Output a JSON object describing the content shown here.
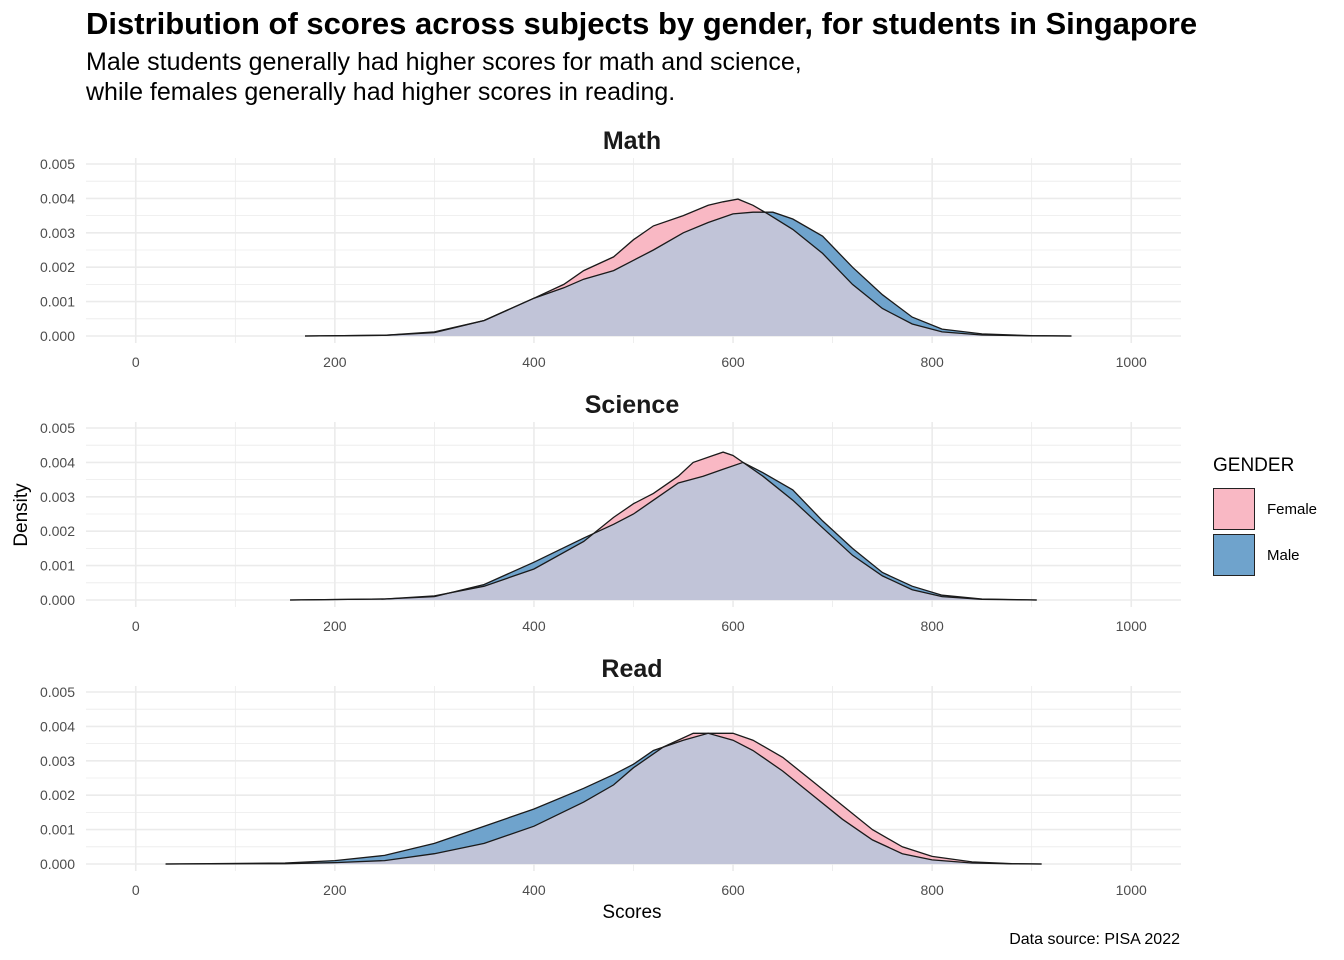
{
  "title": "Distribution of scores across subjects by gender, for students in Singapore",
  "subtitle_line1": "Male students generally had higher scores for math and science,",
  "subtitle_line2": "while females generally had higher scores in reading.",
  "caption": "Data source: PISA 2022",
  "legend": {
    "title": "GENDER",
    "items": [
      {
        "label": "Female",
        "color": "#F9B8C4"
      },
      {
        "label": "Male",
        "color": "#6FA3CC"
      }
    ]
  },
  "colors": {
    "female_fill": "#F9B8C4",
    "male_fill": "#6FA3CC",
    "overlap_fill": "#C1C4D8",
    "grid": "#EBEBEB",
    "outline": "#1a1a1a"
  },
  "chart_data": {
    "type": "area",
    "xlabel": "Scores",
    "ylabel": "Density",
    "xlim": [
      -50,
      1050
    ],
    "ylim": [
      0,
      0.005
    ],
    "x_ticks": [
      0,
      200,
      400,
      600,
      800,
      1000
    ],
    "y_ticks": [
      0,
      0.001,
      0.002,
      0.003,
      0.004,
      0.005
    ],
    "y_tick_labels": [
      "0.000",
      "0.001",
      "0.002",
      "0.003",
      "0.004",
      "0.005"
    ],
    "legend_position": "right",
    "panels": [
      {
        "name": "Math",
        "series": [
          {
            "name": "Female",
            "points": [
              [
                170,
                0
              ],
              [
                250,
                2e-05
              ],
              [
                300,
                0.00012
              ],
              [
                350,
                0.00045
              ],
              [
                400,
                0.0011
              ],
              [
                430,
                0.0015
              ],
              [
                450,
                0.0019
              ],
              [
                480,
                0.0023
              ],
              [
                500,
                0.0028
              ],
              [
                520,
                0.0032
              ],
              [
                550,
                0.0035
              ],
              [
                575,
                0.0038
              ],
              [
                590,
                0.0039
              ],
              [
                605,
                0.00398
              ],
              [
                620,
                0.0038
              ],
              [
                635,
                0.00355
              ],
              [
                660,
                0.0031
              ],
              [
                690,
                0.0024
              ],
              [
                720,
                0.0015
              ],
              [
                750,
                0.0008
              ],
              [
                780,
                0.00035
              ],
              [
                810,
                0.00012
              ],
              [
                850,
                3e-05
              ],
              [
                900,
                5e-06
              ],
              [
                940,
                0
              ]
            ]
          },
          {
            "name": "Male",
            "points": [
              [
                170,
                0
              ],
              [
                250,
                2e-05
              ],
              [
                300,
                0.0001
              ],
              [
                350,
                0.00045
              ],
              [
                400,
                0.0011
              ],
              [
                430,
                0.0014
              ],
              [
                450,
                0.00165
              ],
              [
                480,
                0.0019
              ],
              [
                500,
                0.0022
              ],
              [
                520,
                0.0025
              ],
              [
                550,
                0.003
              ],
              [
                575,
                0.0033
              ],
              [
                600,
                0.00355
              ],
              [
                620,
                0.0036
              ],
              [
                640,
                0.0036
              ],
              [
                660,
                0.0034
              ],
              [
                690,
                0.0029
              ],
              [
                720,
                0.002
              ],
              [
                750,
                0.0012
              ],
              [
                780,
                0.00055
              ],
              [
                810,
                0.0002
              ],
              [
                850,
                6e-05
              ],
              [
                900,
                1e-05
              ],
              [
                940,
                0
              ]
            ]
          }
        ]
      },
      {
        "name": "Science",
        "series": [
          {
            "name": "Female",
            "points": [
              [
                155,
                0
              ],
              [
                250,
                3e-05
              ],
              [
                300,
                0.00012
              ],
              [
                350,
                0.0004
              ],
              [
                400,
                0.0009
              ],
              [
                450,
                0.0017
              ],
              [
                480,
                0.0024
              ],
              [
                500,
                0.0028
              ],
              [
                520,
                0.0031
              ],
              [
                545,
                0.0036
              ],
              [
                560,
                0.004
              ],
              [
                580,
                0.0042
              ],
              [
                590,
                0.0043
              ],
              [
                600,
                0.0042
              ],
              [
                610,
                0.004
              ],
              [
                630,
                0.0036
              ],
              [
                660,
                0.0029
              ],
              [
                690,
                0.0021
              ],
              [
                720,
                0.0013
              ],
              [
                750,
                0.0007
              ],
              [
                780,
                0.0003
              ],
              [
                810,
                0.0001
              ],
              [
                850,
                2e-05
              ],
              [
                905,
                0
              ]
            ]
          },
          {
            "name": "Male",
            "points": [
              [
                155,
                0
              ],
              [
                250,
                3e-05
              ],
              [
                300,
                0.0001
              ],
              [
                350,
                0.00045
              ],
              [
                400,
                0.0011
              ],
              [
                450,
                0.0018
              ],
              [
                480,
                0.0022
              ],
              [
                500,
                0.0025
              ],
              [
                520,
                0.0029
              ],
              [
                545,
                0.0034
              ],
              [
                570,
                0.0036
              ],
              [
                590,
                0.0038
              ],
              [
                610,
                0.004
              ],
              [
                630,
                0.0037
              ],
              [
                660,
                0.0032
              ],
              [
                690,
                0.0023
              ],
              [
                720,
                0.0015
              ],
              [
                750,
                0.0008
              ],
              [
                780,
                0.0004
              ],
              [
                810,
                0.00014
              ],
              [
                850,
                3e-05
              ],
              [
                905,
                0
              ]
            ]
          }
        ]
      },
      {
        "name": "Read",
        "series": [
          {
            "name": "Female",
            "points": [
              [
                30,
                0
              ],
              [
                150,
                1e-05
              ],
              [
                200,
                4e-05
              ],
              [
                250,
                0.0001
              ],
              [
                300,
                0.0003
              ],
              [
                350,
                0.0006
              ],
              [
                400,
                0.0011
              ],
              [
                450,
                0.0018
              ],
              [
                480,
                0.0023
              ],
              [
                500,
                0.0028
              ],
              [
                530,
                0.0034
              ],
              [
                560,
                0.0038
              ],
              [
                580,
                0.0038
              ],
              [
                600,
                0.0038
              ],
              [
                620,
                0.0036
              ],
              [
                650,
                0.0031
              ],
              [
                680,
                0.0024
              ],
              [
                710,
                0.0017
              ],
              [
                740,
                0.001
              ],
              [
                770,
                0.0005
              ],
              [
                800,
                0.00022
              ],
              [
                840,
                6e-05
              ],
              [
                880,
                1e-05
              ],
              [
                910,
                0
              ]
            ]
          },
          {
            "name": "Male",
            "points": [
              [
                30,
                0
              ],
              [
                150,
                3e-05
              ],
              [
                200,
                0.0001
              ],
              [
                250,
                0.00025
              ],
              [
                300,
                0.0006
              ],
              [
                350,
                0.0011
              ],
              [
                400,
                0.0016
              ],
              [
                450,
                0.0022
              ],
              [
                480,
                0.0026
              ],
              [
                500,
                0.0029
              ],
              [
                520,
                0.0033
              ],
              [
                550,
                0.0036
              ],
              [
                575,
                0.0038
              ],
              [
                600,
                0.0036
              ],
              [
                620,
                0.0033
              ],
              [
                650,
                0.0027
              ],
              [
                680,
                0.002
              ],
              [
                710,
                0.0013
              ],
              [
                740,
                0.0007
              ],
              [
                770,
                0.0003
              ],
              [
                800,
                0.00012
              ],
              [
                840,
                3e-05
              ],
              [
                880,
                5e-06
              ],
              [
                910,
                0
              ]
            ]
          }
        ]
      }
    ]
  }
}
